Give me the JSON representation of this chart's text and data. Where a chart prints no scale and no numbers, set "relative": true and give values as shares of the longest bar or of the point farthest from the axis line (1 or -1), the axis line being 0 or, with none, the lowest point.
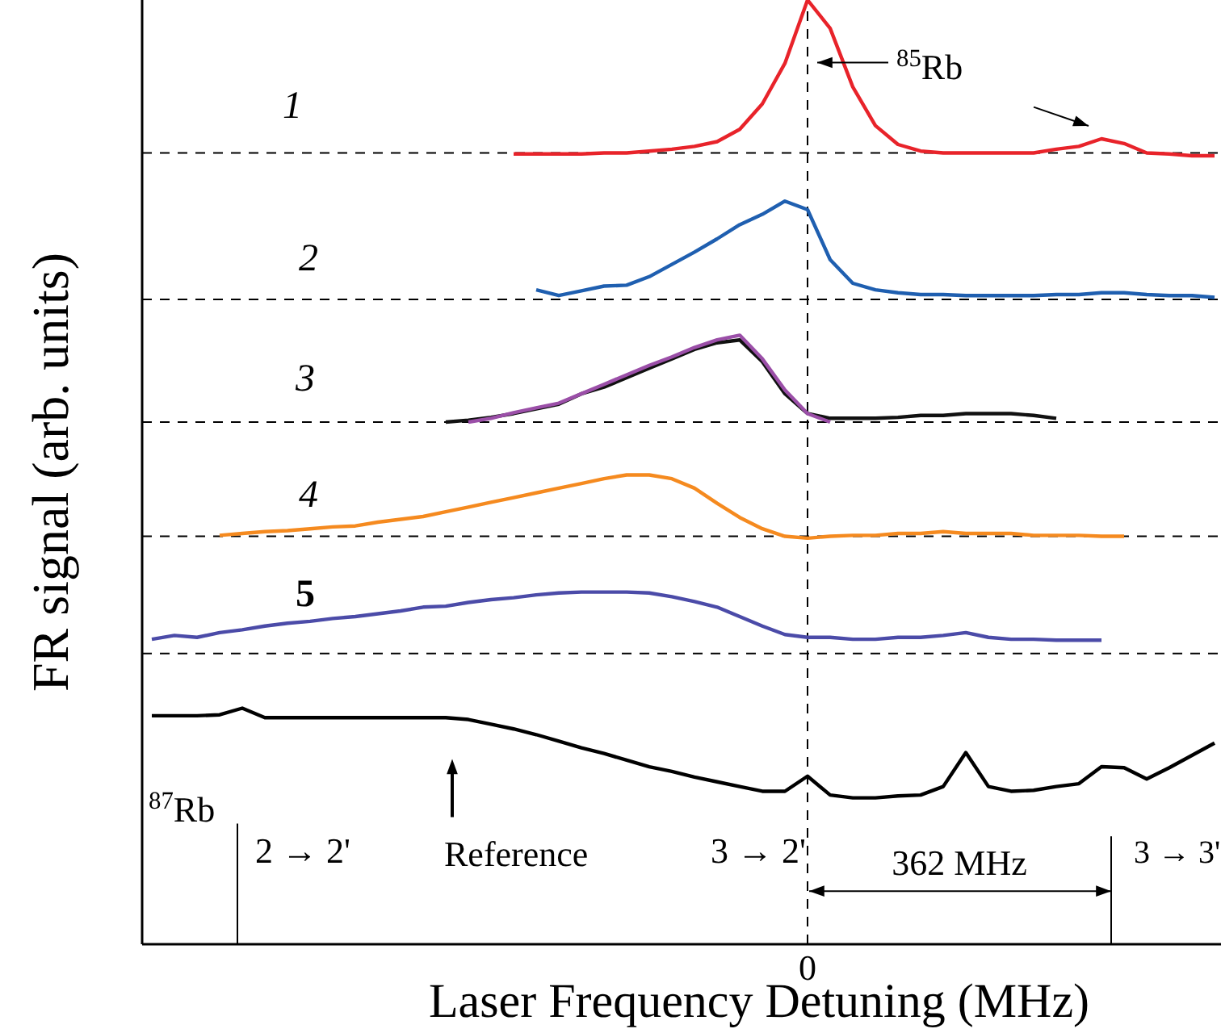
{
  "chart_data": {
    "type": "line",
    "relative": true,
    "xlabel": "Laser Frequency Detuning (MHz)",
    "ylabel": "FR signal (arb. units)",
    "legend": false,
    "line_style": "solid",
    "marker": "none",
    "categories": [
      null,
      null,
      null,
      null,
      null,
      null,
      null,
      null,
      null,
      null,
      null,
      null,
      null,
      null,
      null,
      null,
      null,
      null,
      null,
      null,
      null,
      null,
      null,
      null,
      null,
      null,
      null,
      null,
      null,
      null,
      null,
      null,
      null,
      null,
      null,
      null,
      null,
      null,
      null,
      null,
      null,
      null,
      null,
      null,
      null,
      null,
      null,
      null
    ],
    "series": [
      {
        "color": "#e8232a",
        "values": [
          null,
          null,
          null,
          null,
          null,
          null,
          null,
          null,
          null,
          null,
          null,
          null,
          null,
          null,
          null,
          null,
          0.837,
          0.837,
          0.837,
          0.837,
          0.838,
          0.838,
          0.84,
          0.842,
          0.845,
          0.85,
          0.863,
          0.89,
          0.933,
          1,
          0.97,
          0.908,
          0.867,
          0.847,
          0.84,
          0.838,
          0.838,
          0.838,
          0.838,
          0.838,
          0.842,
          0.845,
          0.853,
          0.848,
          0.838,
          0.837,
          0.835,
          0.835
        ]
      },
      {
        "color": "#1f5fb0",
        "values": [
          null,
          null,
          null,
          null,
          null,
          null,
          null,
          null,
          null,
          null,
          null,
          null,
          null,
          null,
          null,
          null,
          null,
          0.693,
          0.687,
          0.692,
          0.697,
          0.698,
          0.707,
          0.72,
          0.733,
          0.747,
          0.762,
          0.773,
          0.787,
          0.778,
          0.725,
          0.7,
          0.693,
          0.69,
          0.688,
          0.688,
          0.687,
          0.687,
          0.687,
          0.687,
          0.688,
          0.688,
          0.69,
          0.69,
          0.688,
          0.687,
          0.687,
          0.685
        ]
      },
      {
        "color": "#111111",
        "values": [
          null,
          null,
          null,
          null,
          null,
          null,
          null,
          null,
          null,
          null,
          null,
          null,
          null,
          0.553,
          0.555,
          0.558,
          0.562,
          0.567,
          0.572,
          0.583,
          0.59,
          0.6,
          0.61,
          0.62,
          0.63,
          0.637,
          0.64,
          0.617,
          0.583,
          0.562,
          0.557,
          0.557,
          0.557,
          0.558,
          0.56,
          0.56,
          0.562,
          0.562,
          0.562,
          0.56,
          0.557,
          null,
          null,
          null,
          null,
          null,
          null,
          null
        ]
      },
      {
        "color": "#9b4fa8",
        "values": [
          null,
          null,
          null,
          null,
          null,
          null,
          null,
          null,
          null,
          null,
          null,
          null,
          null,
          null,
          0.553,
          0.557,
          0.563,
          0.568,
          0.573,
          0.583,
          0.593,
          0.603,
          0.613,
          0.622,
          0.632,
          0.64,
          0.645,
          0.62,
          0.587,
          0.562,
          0.553,
          null,
          null,
          null,
          null,
          null,
          null,
          null,
          null,
          null,
          null,
          null,
          null,
          null,
          null,
          null,
          null,
          null
        ]
      },
      {
        "color": "#f58a1f",
        "values": [
          null,
          null,
          null,
          0.433,
          0.435,
          0.437,
          0.438,
          0.44,
          0.442,
          0.443,
          0.447,
          0.45,
          0.453,
          0.458,
          0.463,
          0.468,
          0.473,
          0.478,
          0.483,
          0.488,
          0.493,
          0.497,
          0.497,
          0.493,
          0.483,
          0.467,
          0.452,
          0.44,
          0.432,
          0.43,
          0.432,
          0.433,
          0.433,
          0.435,
          0.435,
          0.437,
          0.435,
          0.435,
          0.435,
          0.433,
          0.433,
          0.433,
          0.432,
          0.432,
          null,
          null,
          null,
          null
        ]
      },
      {
        "color": "#4b4ba8",
        "values": [
          0.323,
          0.327,
          0.325,
          0.33,
          0.333,
          0.337,
          0.34,
          0.342,
          0.345,
          0.347,
          0.35,
          0.353,
          0.357,
          0.358,
          0.362,
          0.365,
          0.367,
          0.37,
          0.372,
          0.373,
          0.373,
          0.373,
          0.372,
          0.368,
          0.363,
          0.357,
          0.347,
          0.337,
          0.328,
          0.325,
          0.325,
          0.323,
          0.323,
          0.325,
          0.325,
          0.327,
          0.33,
          0.325,
          0.323,
          0.323,
          0.322,
          0.322,
          0.322,
          null,
          null,
          null,
          null,
          null
        ]
      },
      {
        "color": "#000000",
        "values": [
          0.242,
          0.242,
          0.242,
          0.243,
          0.25,
          0.24,
          0.24,
          0.24,
          0.24,
          0.24,
          0.24,
          0.24,
          0.24,
          0.24,
          0.238,
          0.233,
          0.228,
          0.222,
          0.215,
          0.208,
          0.202,
          0.195,
          0.188,
          0.183,
          0.177,
          0.172,
          0.167,
          0.162,
          0.162,
          0.178,
          0.158,
          0.155,
          0.155,
          0.157,
          0.158,
          0.167,
          0.203,
          0.167,
          0.162,
          0.163,
          0.167,
          0.17,
          0.188,
          0.187,
          0.175,
          0.187,
          0.2,
          0.213
        ]
      }
    ],
    "ref_lines": [
      {
        "axis": "x",
        "value": "0",
        "line_style": "dashed",
        "color": "#000000"
      },
      {
        "axis": "y",
        "value": 0.838,
        "line_style": "dashed",
        "color": "#000000"
      },
      {
        "axis": "y",
        "value": 0.683,
        "line_style": "dashed",
        "color": "#000000"
      },
      {
        "axis": "y",
        "value": 0.553,
        "line_style": "dashed",
        "color": "#000000"
      },
      {
        "axis": "y",
        "value": 0.432,
        "line_style": "dashed",
        "color": "#000000"
      },
      {
        "axis": "y",
        "value": 0.308,
        "line_style": "dashed",
        "color": "#000000"
      }
    ],
    "annotations": [
      "1",
      "2",
      "3",
      "4",
      "5",
      "$^{85}$Rb",
      "$^{87}$Rb",
      "2 → 2'",
      "Reference",
      "3 → 2'",
      "362 MHz",
      "3 → 3'"
    ]
  }
}
